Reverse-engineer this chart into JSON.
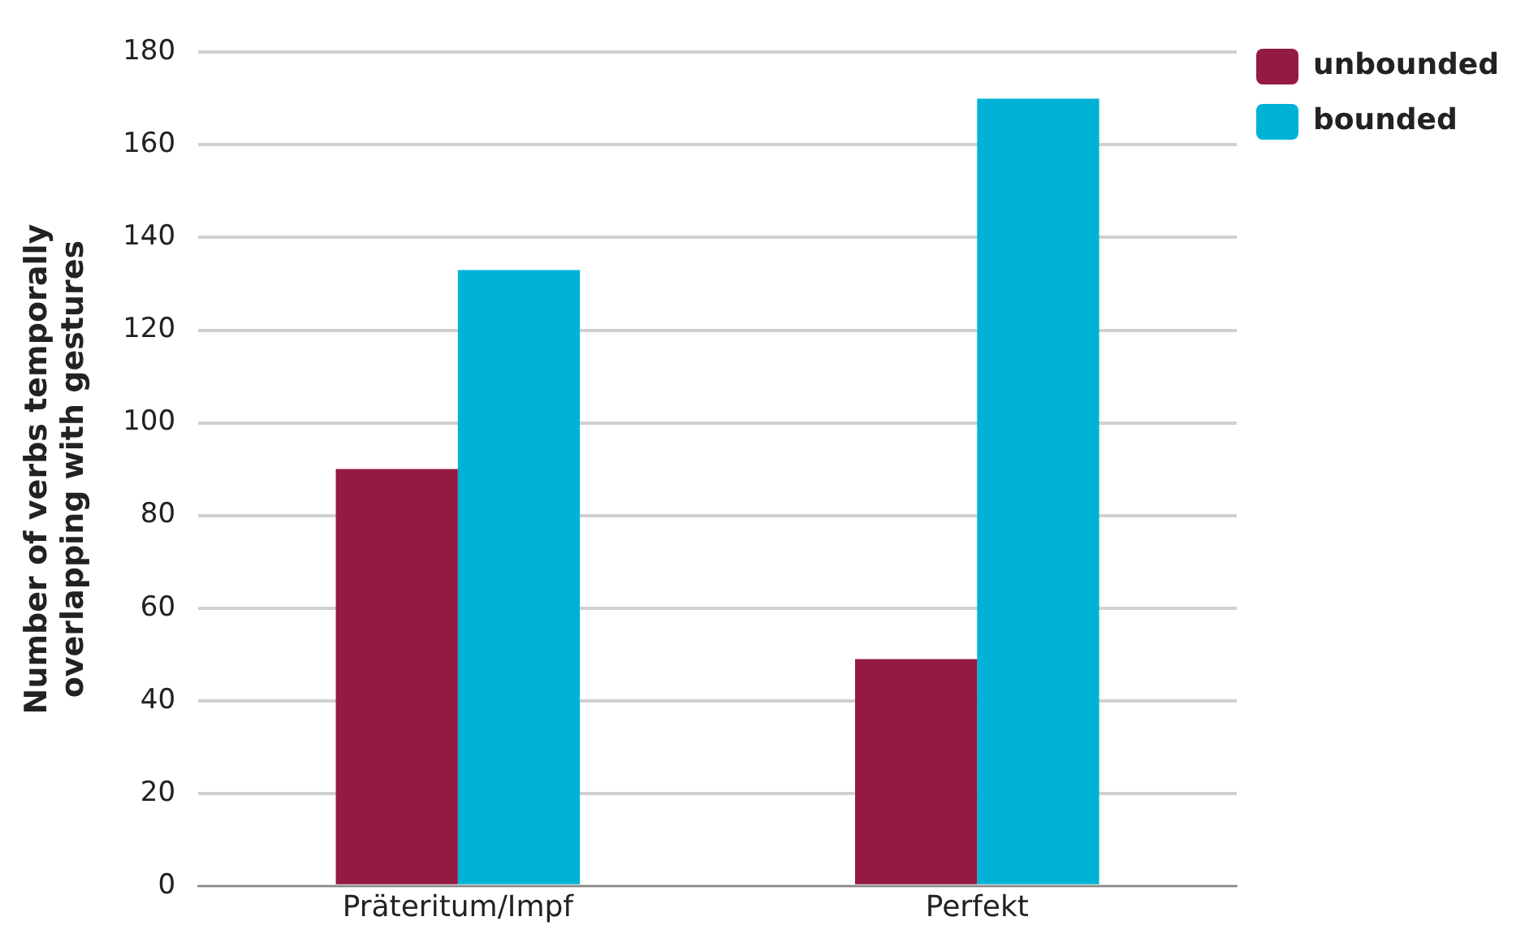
{
  "chart_data": {
    "type": "bar",
    "ylabel": "Number of verbs temporally overlapping with gestures",
    "categories": [
      "Präteritum/Impf",
      "Perfekt"
    ],
    "series": [
      {
        "name": "unbounded",
        "color": "#931a40",
        "values": [
          90,
          49
        ]
      },
      {
        "name": "bounded",
        "color": "#00b2d6",
        "values": [
          133,
          170
        ]
      }
    ],
    "ylim": [
      0,
      180
    ],
    "yticks": [
      0,
      20,
      40,
      60,
      80,
      100,
      120,
      140,
      160,
      180
    ],
    "grid": "y",
    "legend": "top right"
  }
}
